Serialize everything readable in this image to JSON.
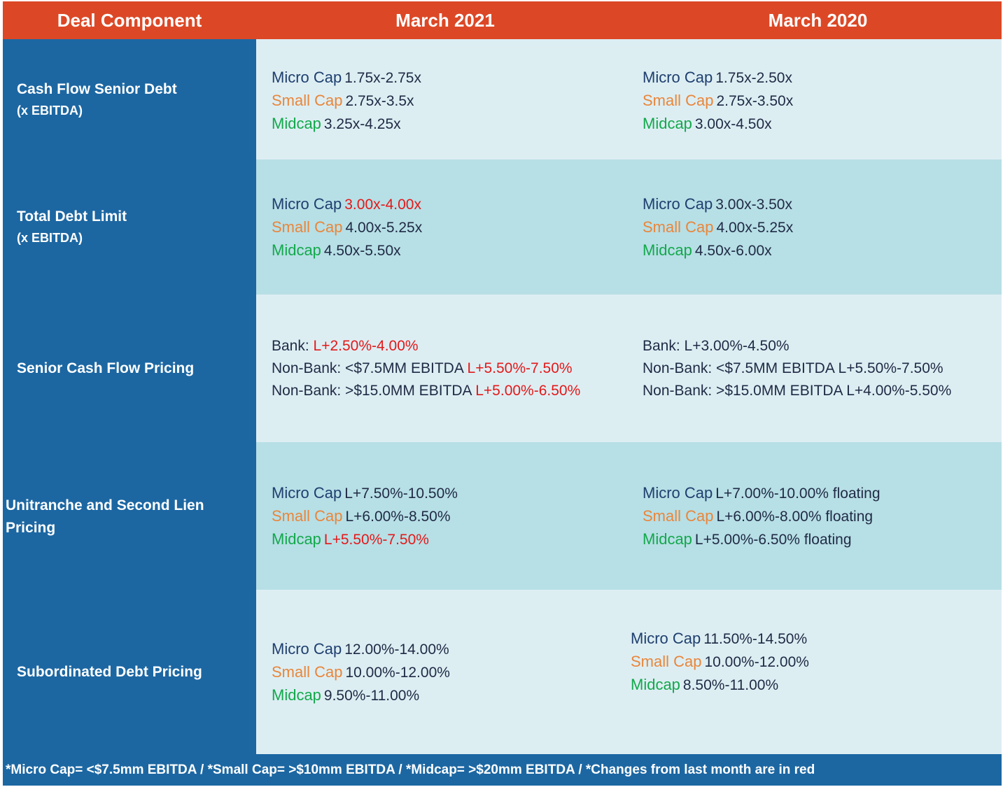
{
  "header": {
    "col0": "Deal Component",
    "col1": "March 2021",
    "col2": "March 2020"
  },
  "rows": [
    {
      "label": "Cash Flow Senior Debt",
      "sublabel": "(x EBITDA)",
      "march2021": {
        "l1_key": "Micro Cap",
        "l1_val": "1.75x-2.75x",
        "l2_key": "Small Cap",
        "l2_val": "2.75x-3.5x",
        "l3_key": "Midcap",
        "l3_val": "3.25x-4.25x"
      },
      "march2020": {
        "l1_key": "Micro Cap",
        "l1_val": "1.75x-2.50x",
        "l2_key": "Small Cap",
        "l2_val": "2.75x-3.50x",
        "l3_key": "Midcap",
        "l3_val": "3.00x-4.50x"
      }
    },
    {
      "label": "Total Debt Limit",
      "sublabel": "(x EBITDA)",
      "march2021": {
        "l1_key": "Micro Cap",
        "l1_val": "3.00x-4.00x",
        "l2_key": "Small Cap",
        "l2_val": "4.00x-5.25x",
        "l3_key": "Midcap",
        "l3_val": "4.50x-5.50x"
      },
      "march2020": {
        "l1_key": "Micro Cap",
        "l1_val": "3.00x-3.50x",
        "l2_key": "Small Cap",
        "l2_val": "4.00x-5.25x",
        "l3_key": "Midcap",
        "l3_val": "4.50x-6.00x"
      }
    },
    {
      "label": "Senior Cash Flow Pricing",
      "march2021": {
        "l1_key": "Bank:",
        "l1_val": "L+2.50%-4.00%",
        "l2_key": "Non-Bank: <$7.5MM EBITDA",
        "l2_val": "L+5.50%-7.50%",
        "l3_key": "Non-Bank: >$15.0MM EBITDA",
        "l3_val": "L+5.00%-6.50%"
      },
      "march2020": {
        "l1_key": "Bank:",
        "l1_val": "L+3.00%-4.50%",
        "l2_key": "Non-Bank: <$7.5MM EBITDA",
        "l2_val": "L+5.50%-7.50%",
        "l3_key": "Non-Bank: >$15.0MM EBITDA",
        "l3_val": "L+4.00%-5.50%"
      }
    },
    {
      "label": "Unitranche and Second Lien Pricing",
      "march2021": {
        "l1_key": "Micro Cap",
        "l1_val": "L+7.50%-10.50%",
        "l2_key": "Small Cap",
        "l2_val": "L+6.00%-8.50%",
        "l3_key": "Midcap",
        "l3_val": "L+5.50%-7.50%"
      },
      "march2020": {
        "l1_key": "Micro Cap",
        "l1_val": "L+7.00%-10.00% floating",
        "l2_key": "Small Cap",
        "l2_val": "L+6.00%-8.00% floating",
        "l3_key": "Midcap",
        "l3_val": "L+5.00%-6.50% floating"
      }
    },
    {
      "label": "Subordinated Debt Pricing",
      "march2021": {
        "l1_key": "Micro Cap",
        "l1_val": "12.00%-14.00%",
        "l2_key": "Small Cap",
        "l2_val": "10.00%-12.00%",
        "l3_key": "Midcap",
        "l3_val": "9.50%-11.00%"
      },
      "march2020": {
        "l1_key": "Micro Cap",
        "l1_val": "11.50%-14.50%",
        "l2_key": "Small Cap",
        "l2_val": "10.00%-12.00%",
        "l3_key": "Midcap",
        "l3_val": "8.50%-11.00%"
      }
    }
  ],
  "footer": "*Micro Cap= <$7.5mm EBITDA / *Small Cap= >$10mm EBITDA / *Midcap= >$20mm EBITDA / *Changes from last month are in red",
  "colors": {
    "header_bg": "#dc4826",
    "left_col_bg": "#1c67a2",
    "row_light": "#ddeef3",
    "row_dark": "#b7dfe6",
    "micro_cap": "#1e3f6e",
    "small_cap": "#e9863a",
    "midcap": "#13a84b",
    "change_red": "#e31919"
  }
}
